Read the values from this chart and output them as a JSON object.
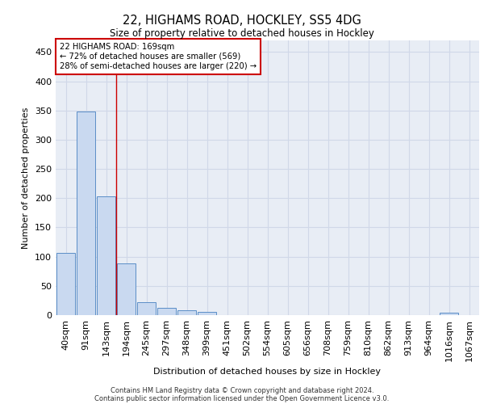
{
  "title": "22, HIGHAMS ROAD, HOCKLEY, SS5 4DG",
  "subtitle": "Size of property relative to detached houses in Hockley",
  "xlabel": "Distribution of detached houses by size in Hockley",
  "ylabel": "Number of detached properties",
  "footer_line1": "Contains HM Land Registry data © Crown copyright and database right 2024.",
  "footer_line2": "Contains public sector information licensed under the Open Government Licence v3.0.",
  "categories": [
    "40sqm",
    "91sqm",
    "143sqm",
    "194sqm",
    "245sqm",
    "297sqm",
    "348sqm",
    "399sqm",
    "451sqm",
    "502sqm",
    "554sqm",
    "605sqm",
    "656sqm",
    "708sqm",
    "759sqm",
    "810sqm",
    "862sqm",
    "913sqm",
    "964sqm",
    "1016sqm",
    "1067sqm"
  ],
  "values": [
    107,
    348,
    203,
    88,
    22,
    13,
    8,
    5,
    0,
    0,
    0,
    0,
    0,
    0,
    0,
    0,
    0,
    0,
    0,
    4,
    0
  ],
  "bar_color": "#c9d9f0",
  "bar_edge_color": "#5b8ec7",
  "grid_color": "#d0d8e8",
  "background_color": "#e8edf5",
  "annotation_text": "22 HIGHAMS ROAD: 169sqm\n← 72% of detached houses are smaller (569)\n28% of semi-detached houses are larger (220) →",
  "annotation_box_color": "#ffffff",
  "annotation_box_edge_color": "#cc0000",
  "red_line_x": 2.5,
  "ylim": [
    0,
    470
  ],
  "yticks": [
    0,
    50,
    100,
    150,
    200,
    250,
    300,
    350,
    400,
    450
  ]
}
